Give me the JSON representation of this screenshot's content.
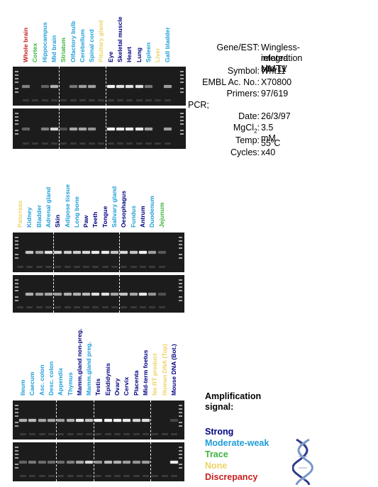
{
  "colors": {
    "strong": "#000080",
    "moderate": "#1e9ed8",
    "trace": "#3cb43c",
    "none": "#ecd464",
    "discrepancy": "#c81e1e"
  },
  "panels": [
    {
      "lanes": [
        {
          "label": "Whole brain",
          "signal": "discrepancy",
          "g1": 0.35,
          "g2": 0.2
        },
        {
          "label": "Cortex",
          "signal": "trace",
          "g1": 0.0,
          "g2": 0.0
        },
        {
          "label": "Hippocampus",
          "signal": "moderate",
          "g1": 0.2,
          "g2": 0.35
        },
        {
          "label": "Mid brain",
          "signal": "moderate",
          "g1": 0.6,
          "g2": 0.8
        },
        {
          "label": "Striatum",
          "signal": "trace",
          "g1": 0.0,
          "g2": 0.1
        },
        {
          "label": "Olfactory bulb",
          "signal": "moderate",
          "g1": 0.3,
          "g2": 0.55
        },
        {
          "label": "Cerebellum",
          "signal": "moderate",
          "g1": 0.5,
          "g2": 0.55
        },
        {
          "label": "Spinal cord",
          "signal": "moderate",
          "g1": 0.5,
          "g2": 0.45
        },
        {
          "label": "Pituitary gland",
          "signal": "none",
          "g1": 0.0,
          "g2": 0.0
        },
        {
          "label": "Eye",
          "signal": "strong",
          "g1": 0.95,
          "g2": 0.95
        },
        {
          "label": "Skeletal muscle",
          "signal": "strong",
          "g1": 0.85,
          "g2": 0.9
        },
        {
          "label": "Heart",
          "signal": "strong",
          "g1": 0.85,
          "g2": 0.9
        },
        {
          "label": "Lung",
          "signal": "strong",
          "g1": 0.85,
          "g2": 0.9
        },
        {
          "label": "Spleen",
          "signal": "moderate",
          "g1": 0.3,
          "g2": 0.55
        },
        {
          "label": "Liver",
          "signal": "none",
          "g1": 0.0,
          "g2": 0.0
        },
        {
          "label": "Gall bladder",
          "signal": "moderate",
          "g1": 0.5,
          "g2": 0.5
        }
      ]
    },
    {
      "lanes": [
        {
          "label": "Pancreas",
          "signal": "none",
          "g1": 0.0,
          "g2": 0.0
        },
        {
          "label": "Kidney",
          "signal": "moderate",
          "g1": 0.7,
          "g2": 0.6
        },
        {
          "label": "Bladder",
          "signal": "moderate",
          "g1": 0.55,
          "g2": 0.5
        },
        {
          "label": "Adrenal gland",
          "signal": "moderate",
          "g1": 0.85,
          "g2": 0.55
        },
        {
          "label": "Skin",
          "signal": "strong",
          "g1": 0.8,
          "g2": 0.5
        },
        {
          "label": "Adipose tissue",
          "signal": "moderate",
          "g1": 0.75,
          "g2": 0.6
        },
        {
          "label": "Long bone",
          "signal": "moderate",
          "g1": 0.75,
          "g2": 0.6
        },
        {
          "label": "Paw",
          "signal": "strong",
          "g1": 0.8,
          "g2": 0.65
        },
        {
          "label": "Teeth",
          "signal": "strong",
          "g1": 0.9,
          "g2": 0.85
        },
        {
          "label": "Tongue",
          "signal": "strong",
          "g1": 0.9,
          "g2": 0.85
        },
        {
          "label": "Salivary gland",
          "signal": "moderate",
          "g1": 0.7,
          "g2": 0.55
        },
        {
          "label": "Oesophagus",
          "signal": "strong",
          "g1": 0.8,
          "g2": 0.7
        },
        {
          "label": "Fundus",
          "signal": "moderate",
          "g1": 0.7,
          "g2": 0.55
        },
        {
          "label": "Antrum",
          "signal": "strong",
          "g1": 0.95,
          "g2": 0.9
        },
        {
          "label": "Duodenum",
          "signal": "moderate",
          "g1": 0.5,
          "g2": 0.45
        },
        {
          "label": "Jejunum",
          "signal": "trace",
          "g1": 0.15,
          "g2": 0.1
        }
      ]
    },
    {
      "lanes": [
        {
          "label": "Ileum",
          "signal": "moderate",
          "g1": 0.6,
          "g2": 0.2
        },
        {
          "label": "Caecum",
          "signal": "moderate",
          "g1": 0.65,
          "g2": 0.3
        },
        {
          "label": "Asc. colon",
          "signal": "moderate",
          "g1": 0.55,
          "g2": 0.25
        },
        {
          "label": "Desc. colon",
          "signal": "moderate",
          "g1": 0.55,
          "g2": 0.25
        },
        {
          "label": "Appendix",
          "signal": "moderate",
          "g1": 0.5,
          "g2": 0.25
        },
        {
          "label": "Thymus",
          "signal": "moderate",
          "g1": 0.6,
          "g2": 0.35
        },
        {
          "label": "Mamm.gland non-preg.",
          "signal": "strong",
          "g1": 0.9,
          "g2": 0.55
        },
        {
          "label": "Mamm.gland preg.",
          "signal": "moderate",
          "g1": 0.7,
          "g2": 0.8
        },
        {
          "label": "Testis",
          "signal": "strong",
          "g1": 0.95,
          "g2": 0.45
        },
        {
          "label": "Epididymis",
          "signal": "strong",
          "g1": 0.95,
          "g2": 0.65
        },
        {
          "label": "Ovary",
          "signal": "strong",
          "g1": 0.95,
          "g2": 0.6
        },
        {
          "label": "Cervix",
          "signal": "strong",
          "g1": 0.9,
          "g2": 0.5
        },
        {
          "label": "Placenta",
          "signal": "strong",
          "g1": 0.8,
          "g2": 0.45
        },
        {
          "label": "Mid-term foetus",
          "signal": "strong",
          "g1": 0.85,
          "g2": 0.5
        },
        {
          "label": "No RT product",
          "signal": "none",
          "g1": 0.0,
          "g2": 0.0
        },
        {
          "label": "Human DNA (Top)",
          "signal": "none",
          "g1": 0.0,
          "g2": 0.0
        },
        {
          "label": "Mouse DNA (Bot.)",
          "signal": "strong",
          "g1": 0.05,
          "g2": 0.9
        }
      ]
    }
  ],
  "info": {
    "gene_label": "Gene/EST:",
    "gene_value_line1": "Wingless-related MMTV",
    "gene_value_line2": "integration site 11",
    "symbol_label": "Symbol:",
    "symbol_value": "Wnt11",
    "embl_label": "EMBL Ac. No.:",
    "embl_value": "X70800",
    "primers_label": "Primers:",
    "primers_value": "97/619",
    "pcr_label": "PCR;",
    "date_label": "Date:",
    "date_value": "26/3/97",
    "mgcl_label_prefix": "MgCl",
    "mgcl_label_sub": "2",
    "mgcl_label_suffix": ":",
    "mgcl_value": "3.5 mM",
    "temp_label": "Temp:",
    "temp_value_prefix": "55",
    "temp_value_sup": "o",
    "temp_value_suffix": "C",
    "cycles_label": "Cycles:",
    "cycles_value": "x40"
  },
  "legend": {
    "title_line1": "Amplification",
    "title_line2": "signal:",
    "items": [
      {
        "key": "strong",
        "label": "Strong"
      },
      {
        "key": "moderate",
        "label": "Moderate-weak"
      },
      {
        "key": "trace",
        "label": "Trace"
      },
      {
        "key": "none",
        "label": "None"
      },
      {
        "key": "discrepancy",
        "label": "Discrepancy"
      }
    ]
  }
}
